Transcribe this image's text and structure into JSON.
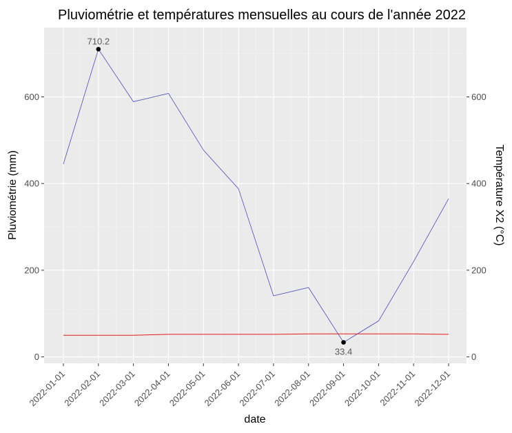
{
  "chart_data": {
    "type": "line",
    "title": "Pluviométrie et températures mensuelles au cours de l'année 2022",
    "xlabel": "date",
    "ylabel": "Pluviométrie (mm)",
    "y2label": "Température X2 (°C)",
    "x": [
      "2022-01-01",
      "2022-02-01",
      "2022-03-01",
      "2022-04-01",
      "2022-05-01",
      "2022-06-01",
      "2022-07-01",
      "2022-08-01",
      "2022-09-01",
      "2022-10-01",
      "2022-11-01",
      "2022-12-01"
    ],
    "ylim": [
      -15,
      760
    ],
    "yticks": [
      0,
      200,
      400,
      600
    ],
    "y2ticks": [
      0,
      200,
      400,
      600
    ],
    "grid": true,
    "series": [
      {
        "color": "#4a4ab8",
        "values": [
          445,
          710.2,
          589,
          608,
          477,
          388,
          141,
          160,
          33.4,
          83,
          220,
          365
        ]
      },
      {
        "color": "#e41a1c",
        "values": [
          50,
          50,
          50,
          52,
          52,
          52,
          52,
          53,
          53,
          53,
          53,
          52
        ]
      }
    ],
    "annotations": [
      {
        "x": "2022-02-01",
        "y": 710.2,
        "text": "710.2",
        "position": "above"
      },
      {
        "x": "2022-09-01",
        "y": 33.4,
        "text": "33.4",
        "position": "below"
      }
    ]
  }
}
